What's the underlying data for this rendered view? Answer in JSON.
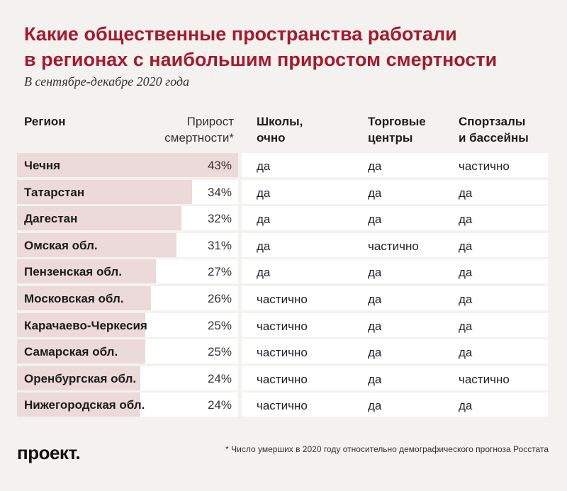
{
  "title_line1": "Какие общественные пространства работали",
  "title_line2": "в регионах с наибольшим приростом смертности",
  "subtitle": "В сентябре-декабре 2020 года",
  "headers": {
    "region": "Регион",
    "growth_line1": "Прирост",
    "growth_line2": "смертности*",
    "schools_line1": "Школы,",
    "schools_line2": "очно",
    "malls_line1": "Торговые",
    "malls_line2": "центры",
    "gyms_line1": "Спортзалы",
    "gyms_line2": "и бассейны"
  },
  "chart_data": {
    "type": "table",
    "columns": [
      "Регион",
      "Прирост смертности*",
      "Школы, очно",
      "Торговые центры",
      "Спортзалы и бассейны"
    ],
    "rows": [
      {
        "region": "Чечня",
        "growth": 43,
        "growth_label": "43%",
        "schools": "да",
        "malls": "да",
        "gyms": "частично"
      },
      {
        "region": "Татарстан",
        "growth": 34,
        "growth_label": "34%",
        "schools": "да",
        "malls": "да",
        "gyms": "да"
      },
      {
        "region": "Дагестан",
        "growth": 32,
        "growth_label": "32%",
        "schools": "да",
        "malls": "да",
        "gyms": "да"
      },
      {
        "region": "Омская обл.",
        "growth": 31,
        "growth_label": "31%",
        "schools": "да",
        "malls": "частично",
        "gyms": "да"
      },
      {
        "region": "Пензенская обл.",
        "growth": 27,
        "growth_label": "27%",
        "schools": "да",
        "malls": "да",
        "gyms": "да"
      },
      {
        "region": "Московская обл.",
        "growth": 26,
        "growth_label": "26%",
        "schools": "частично",
        "malls": "да",
        "gyms": "да"
      },
      {
        "region": "Карачаево-Черкесия",
        "growth": 25,
        "growth_label": "25%",
        "schools": "частично",
        "malls": "да",
        "gyms": "да"
      },
      {
        "region": "Самарская обл.",
        "growth": 25,
        "growth_label": "25%",
        "schools": "частично",
        "malls": "да",
        "gyms": "да"
      },
      {
        "region": "Оренбургская обл.",
        "growth": 24,
        "growth_label": "24%",
        "schools": "частично",
        "malls": "да",
        "gyms": "частично"
      },
      {
        "region": "Нижегородская обл.",
        "growth": 24,
        "growth_label": "24%",
        "schools": "частично",
        "malls": "да",
        "gyms": "да"
      }
    ],
    "bar_max": 43,
    "colors": {
      "bar": "#ecd9d9",
      "title": "#a6192e",
      "background": "#f3f2ee",
      "cell": "#ffffff"
    }
  },
  "logo": "проект.",
  "footnote": "* Число умерших в 2020 году относительно демографического прогноза Росстата"
}
